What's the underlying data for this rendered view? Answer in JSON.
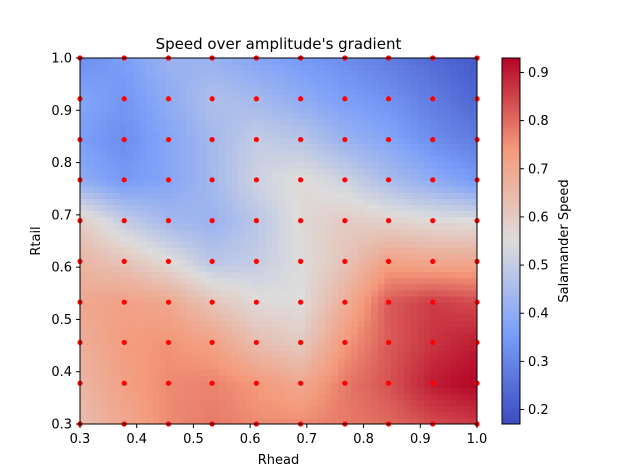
{
  "chart_data": {
    "type": "heatmap",
    "title": "Speed over amplitude's gradient",
    "xlabel": "Rhead",
    "ylabel": "Rtail",
    "colorbar_label": "Salamander Speed",
    "colormap": "coolwarm",
    "xlim": [
      0.3,
      1.0
    ],
    "ylim": [
      0.3,
      1.0
    ],
    "clim": [
      0.17,
      0.93
    ],
    "x_ticks": [
      "0.3",
      "0.4",
      "0.5",
      "0.6",
      "0.7",
      "0.8",
      "0.9",
      "1.0"
    ],
    "y_ticks": [
      "0.3",
      "0.4",
      "0.5",
      "0.6",
      "0.7",
      "0.8",
      "0.9",
      "1.0"
    ],
    "colorbar_ticks": [
      "0.2",
      "0.3",
      "0.4",
      "0.5",
      "0.6",
      "0.7",
      "0.8",
      "0.9"
    ],
    "grid": false,
    "sample_marker_color": "#ff0000",
    "grid_x": [
      0.3,
      0.378,
      0.456,
      0.533,
      0.611,
      0.689,
      0.767,
      0.844,
      0.922,
      1.0
    ],
    "grid_y": [
      0.3,
      0.378,
      0.456,
      0.533,
      0.611,
      0.689,
      0.767,
      0.844,
      0.922,
      1.0
    ],
    "z_rows": [
      [
        0.64,
        0.7,
        0.76,
        0.78,
        0.76,
        0.76,
        0.78,
        0.8,
        0.84,
        0.86
      ],
      [
        0.66,
        0.72,
        0.76,
        0.77,
        0.74,
        0.7,
        0.78,
        0.83,
        0.9,
        0.93
      ],
      [
        0.68,
        0.73,
        0.75,
        0.72,
        0.64,
        0.6,
        0.74,
        0.82,
        0.87,
        0.9
      ],
      [
        0.7,
        0.72,
        0.7,
        0.62,
        0.56,
        0.55,
        0.68,
        0.82,
        0.86,
        0.84
      ],
      [
        0.66,
        0.62,
        0.56,
        0.48,
        0.5,
        0.55,
        0.62,
        0.72,
        0.7,
        0.7
      ],
      [
        0.6,
        0.5,
        0.44,
        0.42,
        0.48,
        0.56,
        0.6,
        0.58,
        0.56,
        0.55
      ],
      [
        0.4,
        0.35,
        0.38,
        0.44,
        0.52,
        0.56,
        0.52,
        0.45,
        0.4,
        0.35
      ],
      [
        0.36,
        0.32,
        0.38,
        0.44,
        0.5,
        0.48,
        0.42,
        0.38,
        0.32,
        0.28
      ],
      [
        0.38,
        0.34,
        0.4,
        0.46,
        0.44,
        0.4,
        0.36,
        0.33,
        0.28,
        0.23
      ],
      [
        0.32,
        0.36,
        0.42,
        0.42,
        0.38,
        0.35,
        0.32,
        0.28,
        0.24,
        0.2
      ]
    ]
  }
}
